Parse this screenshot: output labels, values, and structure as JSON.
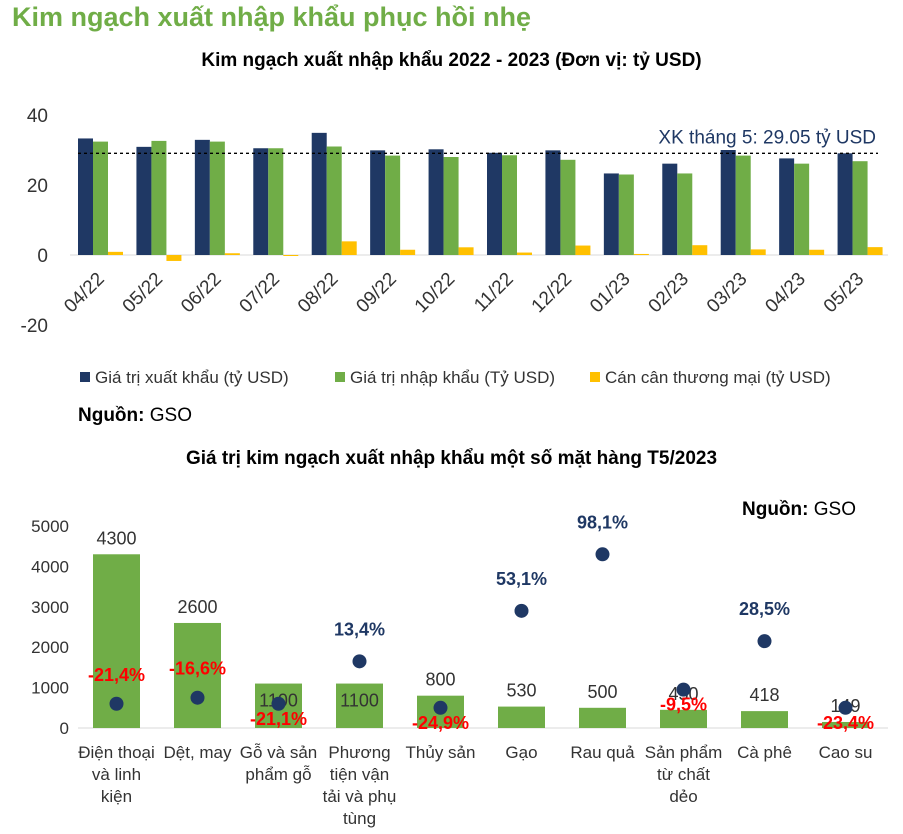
{
  "page": {
    "heading": "Kim ngạch xuất nhập khẩu phục hồi nhẹ"
  },
  "chart_data": [
    {
      "type": "bar",
      "title": "Kim ngạch xuất nhập khẩu 2022 - 2023 (Đơn vị: tỷ USD)",
      "categories": [
        "04/22",
        "05/22",
        "06/22",
        "07/22",
        "08/22",
        "09/22",
        "10/22",
        "11/22",
        "12/22",
        "01/23",
        "02/23",
        "03/23",
        "04/23",
        "05/23"
      ],
      "series": [
        {
          "name": "Giá trị xuất khẩu (tỷ USD)",
          "color": "#1f3864",
          "values": [
            33.3,
            30.9,
            32.9,
            30.5,
            34.9,
            29.9,
            30.2,
            29.2,
            29.9,
            23.3,
            26.1,
            30.0,
            27.6,
            29.05
          ]
        },
        {
          "name": "Giá trị nhập khẩu (Tỷ USD)",
          "color": "#70ad47",
          "values": [
            32.4,
            32.6,
            32.4,
            30.5,
            31.0,
            28.4,
            28.0,
            28.5,
            27.2,
            23.0,
            23.3,
            28.4,
            26.1,
            26.8
          ]
        },
        {
          "name": "Cán cân thương mại (tỷ USD)",
          "color": "#ffc000",
          "values": [
            0.9,
            -1.7,
            0.5,
            0.0,
            3.9,
            1.5,
            2.2,
            0.7,
            2.7,
            0.3,
            2.8,
            1.6,
            1.5,
            2.25
          ]
        }
      ],
      "ylim": [
        -20,
        40
      ],
      "yticks": [
        40,
        20,
        0,
        -20
      ],
      "reference_line": {
        "value": 29.05,
        "label": "XK tháng 5: 29.05 tỷ USD"
      },
      "legend_position": "bottom",
      "source_label": "Nguồn:",
      "source_value": "GSO"
    },
    {
      "type": "bar",
      "title": "Giá trị kim ngạch xuất nhập khẩu một số mặt hàng T5/2023",
      "categories": [
        [
          "Điện thoại",
          "và linh",
          "kiện"
        ],
        [
          "Dệt, may"
        ],
        [
          "Gỗ và sản",
          "phẩm gỗ"
        ],
        [
          "Phương",
          "tiện vận",
          "tải và phụ",
          "tùng"
        ],
        [
          "Thủy sản"
        ],
        [
          "Gạo"
        ],
        [
          "Rau quả"
        ],
        [
          "Sản phẩm",
          "từ chất",
          "dẻo"
        ],
        [
          "Cà phê"
        ],
        [
          "Cao su"
        ]
      ],
      "values": [
        4300,
        2600,
        1100,
        1100,
        800,
        530,
        500,
        450,
        418,
        149
      ],
      "value_labels": [
        "4300",
        "2600",
        "1100",
        "1100",
        "800",
        "530",
        "500",
        "450",
        "418",
        "149"
      ],
      "growth_labels": [
        "-21,4%",
        "-16,6%",
        "-21,1%",
        "13,4%",
        "-24,9%",
        "53,1%",
        "98,1%",
        "-9,5%",
        "28,5%",
        "-23,4%"
      ],
      "growth_dot_values": [
        600,
        750,
        600,
        1650,
        500,
        2900,
        4300,
        950,
        2150,
        500
      ],
      "ylim": [
        0,
        5000
      ],
      "yticks": [
        5000,
        4000,
        3000,
        2000,
        1000,
        0
      ],
      "bar_color": "#70ad47",
      "dot_color": "#1f3864",
      "positive_color": "#1f3864",
      "negative_color": "#ff0000",
      "source_label": "Nguồn:",
      "source_value": "GSO"
    }
  ]
}
